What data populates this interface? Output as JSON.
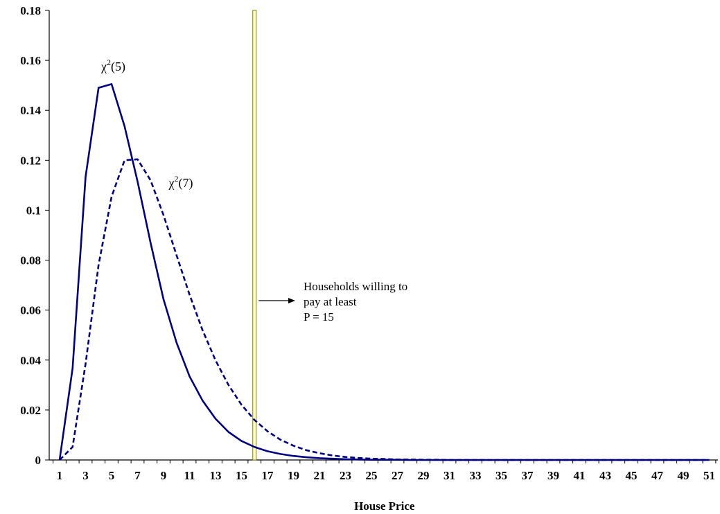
{
  "chart_data": {
    "type": "line",
    "title": "",
    "xlabel": "House Price",
    "ylabel": "",
    "x": [
      1,
      2,
      3,
      4,
      5,
      6,
      7,
      8,
      9,
      10,
      11,
      12,
      13,
      14,
      15,
      16,
      17,
      18,
      19,
      20,
      21,
      22,
      23,
      24,
      25,
      26,
      27,
      28,
      29,
      30,
      31,
      32,
      33,
      34,
      35,
      36,
      37,
      38,
      39,
      40,
      41,
      42,
      43,
      44,
      45,
      46,
      47,
      48,
      49,
      50,
      51
    ],
    "x_tick_labels": [
      "1",
      "3",
      "5",
      "7",
      "9",
      "11",
      "13",
      "15",
      "17",
      "19",
      "21",
      "23",
      "25",
      "27",
      "29",
      "31",
      "33",
      "35",
      "37",
      "39",
      "41",
      "43",
      "45",
      "47",
      "49",
      "51"
    ],
    "y_tick_labels": [
      "0",
      "0.02",
      "0.04",
      "0.06",
      "0.08",
      "0.1",
      "0.12",
      "0.14",
      "0.16",
      "0.18"
    ],
    "y_ticks": [
      0,
      0.02,
      0.04,
      0.06,
      0.08,
      0.1,
      0.12,
      0.14,
      0.16,
      0.18
    ],
    "xlim": [
      1,
      51
    ],
    "ylim": [
      0,
      0.18
    ],
    "grid": false,
    "series": [
      {
        "label": "χ²(5)",
        "label_sup": "2",
        "label_base": "χ",
        "label_rest": "(5)",
        "style": "solid",
        "color": "#000080",
        "values": [
          0.0,
          0.0367,
          0.1134,
          0.149,
          0.1505,
          0.1336,
          0.1115,
          0.087,
          0.0643,
          0.047,
          0.0335,
          0.0238,
          0.0165,
          0.0112,
          0.0076,
          0.0052,
          0.0035,
          0.0024,
          0.0016,
          0.0011,
          0.0007,
          0.0005,
          0.0003,
          0.0002,
          0.0001,
          0.0001,
          0.0001,
          0.0,
          0.0,
          0.0,
          0.0,
          0.0,
          0.0,
          0.0,
          0.0,
          0.0,
          0.0,
          0.0,
          0.0,
          0.0,
          0.0,
          0.0,
          0.0,
          0.0,
          0.0,
          0.0,
          0.0,
          0.0,
          0.0,
          0.0,
          0.0
        ]
      },
      {
        "label": "χ²(7)",
        "label_sup": "2",
        "label_base": "χ",
        "label_rest": "(7)",
        "style": "dashed",
        "color": "#000080",
        "values": [
          0.0,
          0.0052,
          0.0385,
          0.0781,
          0.1054,
          0.12,
          0.1204,
          0.112,
          0.098,
          0.082,
          0.0662,
          0.052,
          0.0399,
          0.03,
          0.0221,
          0.016,
          0.0115,
          0.0081,
          0.0057,
          0.0039,
          0.0027,
          0.0018,
          0.0012,
          0.0008,
          0.0005,
          0.0004,
          0.0002,
          0.0002,
          0.0001,
          0.0001,
          0.0,
          0.0,
          0.0,
          0.0,
          0.0,
          0.0,
          0.0,
          0.0,
          0.0,
          0.0,
          0.0,
          0.0,
          0.0,
          0.0,
          0.0,
          0.0,
          0.0,
          0.0,
          0.0,
          0.0,
          0.0
        ]
      }
    ],
    "vertical_marker": {
      "x": 16,
      "fill": "#ffffcc",
      "stroke": "#808000"
    },
    "annotation": {
      "lines": [
        "Households willing to",
        "pay at least",
        "P = 15"
      ]
    }
  }
}
